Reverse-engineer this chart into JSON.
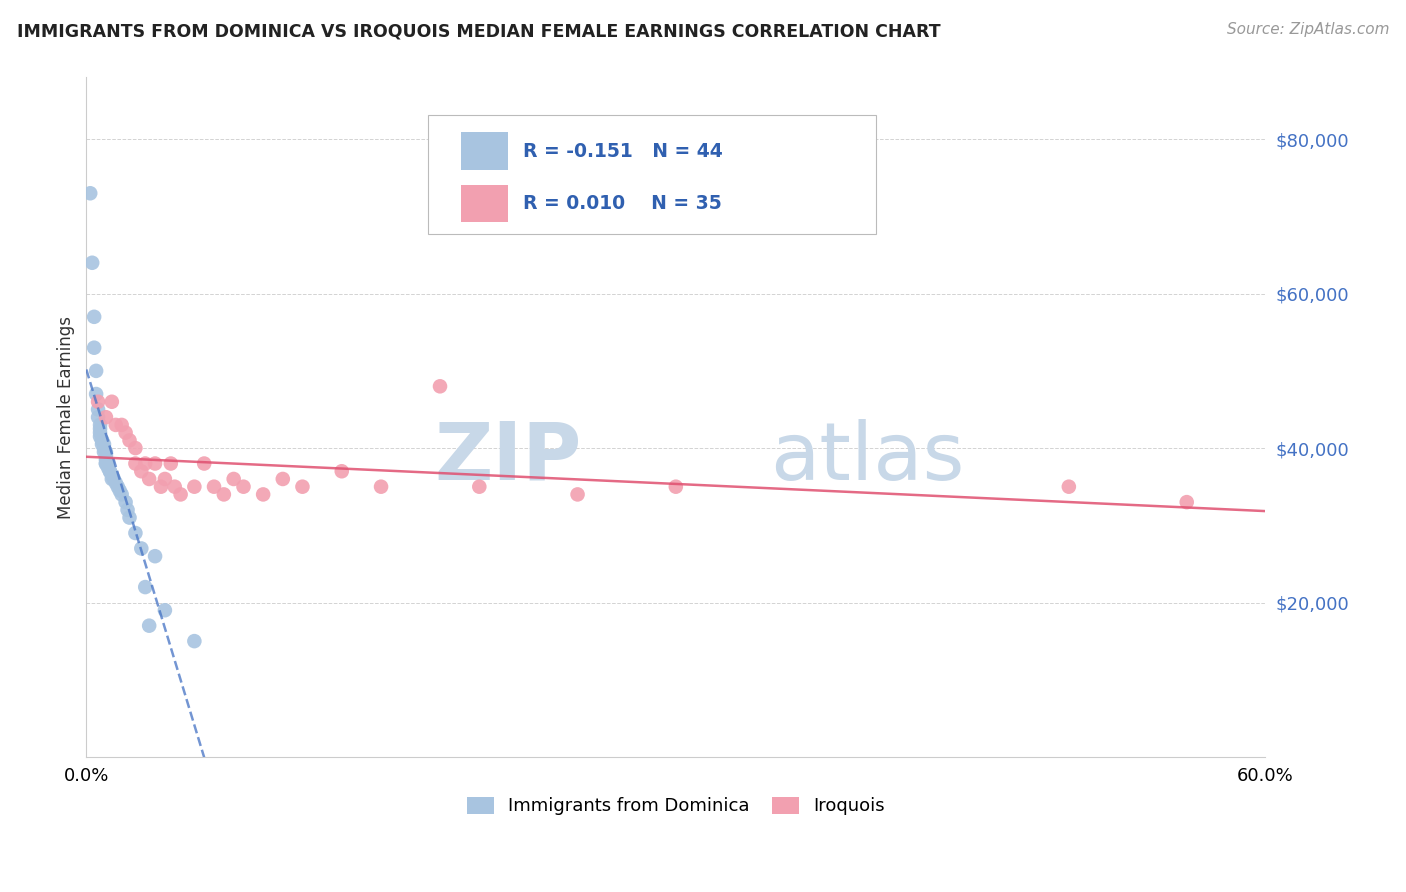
{
  "title": "IMMIGRANTS FROM DOMINICA VS IROQUOIS MEDIAN FEMALE EARNINGS CORRELATION CHART",
  "source": "Source: ZipAtlas.com",
  "ylabel": "Median Female Earnings",
  "y_ticks": [
    20000,
    40000,
    60000,
    80000
  ],
  "y_tick_labels": [
    "$20,000",
    "$40,000",
    "$60,000",
    "$80,000"
  ],
  "xlim": [
    0.0,
    0.6
  ],
  "ylim": [
    0,
    88000
  ],
  "legend_labels": [
    "Immigrants from Dominica",
    "Iroquois"
  ],
  "r_dominica": -0.151,
  "n_dominica": 44,
  "r_iroquois": 0.01,
  "n_iroquois": 35,
  "color_dominica": "#a8c4e0",
  "color_iroquois": "#f2a0b0",
  "trendline_dominica_color": "#4472c4",
  "trendline_iroquois_color": "#e05070",
  "watermark_zip": "ZIP",
  "watermark_atlas": "atlas",
  "watermark_color": "#c8d8e8",
  "dominica_x": [
    0.002,
    0.003,
    0.004,
    0.004,
    0.005,
    0.005,
    0.006,
    0.006,
    0.007,
    0.007,
    0.007,
    0.007,
    0.008,
    0.008,
    0.008,
    0.009,
    0.009,
    0.009,
    0.01,
    0.01,
    0.01,
    0.01,
    0.01,
    0.011,
    0.011,
    0.012,
    0.012,
    0.013,
    0.013,
    0.014,
    0.015,
    0.016,
    0.017,
    0.018,
    0.02,
    0.021,
    0.022,
    0.025,
    0.028,
    0.03,
    0.032,
    0.035,
    0.04,
    0.055
  ],
  "dominica_y": [
    73000,
    64000,
    57000,
    53000,
    50000,
    47000,
    45000,
    44000,
    43000,
    42500,
    42000,
    41500,
    41000,
    41000,
    40500,
    40500,
    40000,
    39500,
    39500,
    39000,
    38500,
    38000,
    38000,
    38000,
    37500,
    37000,
    37000,
    36500,
    36000,
    36000,
    35500,
    35000,
    34500,
    34000,
    33000,
    32000,
    31000,
    29000,
    27000,
    22000,
    17000,
    26000,
    19000,
    15000
  ],
  "iroquois_x": [
    0.006,
    0.01,
    0.013,
    0.015,
    0.018,
    0.02,
    0.022,
    0.025,
    0.025,
    0.028,
    0.03,
    0.032,
    0.035,
    0.038,
    0.04,
    0.043,
    0.045,
    0.048,
    0.055,
    0.06,
    0.065,
    0.07,
    0.075,
    0.08,
    0.09,
    0.1,
    0.11,
    0.13,
    0.15,
    0.18,
    0.2,
    0.25,
    0.3,
    0.5,
    0.56
  ],
  "iroquois_y": [
    46000,
    44000,
    46000,
    43000,
    43000,
    42000,
    41000,
    38000,
    40000,
    37000,
    38000,
    36000,
    38000,
    35000,
    36000,
    38000,
    35000,
    34000,
    35000,
    38000,
    35000,
    34000,
    36000,
    35000,
    34000,
    36000,
    35000,
    37000,
    35000,
    48000,
    35000,
    34000,
    35000,
    35000,
    33000
  ]
}
